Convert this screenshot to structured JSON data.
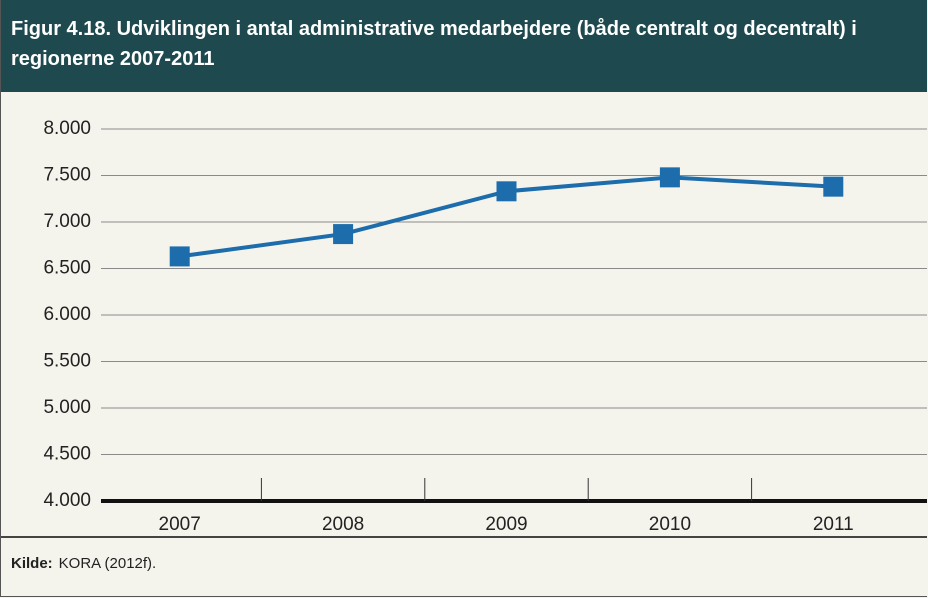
{
  "chart_data": {
    "type": "line",
    "title": "Figur 4.18. Udviklingen i antal administrative medarbejdere (både centralt og decentralt) i regionerne 2007-2011",
    "categories": [
      "2007",
      "2008",
      "2009",
      "2010",
      "2011"
    ],
    "series": [
      {
        "name": "Administrative medarbejdere",
        "color": "#1d6cab",
        "values": [
          6630,
          6870,
          7330,
          7480,
          7380
        ]
      }
    ],
    "ylim": [
      4000,
      8000
    ],
    "yticks": [
      {
        "value": 4000,
        "label": "4.000"
      },
      {
        "value": 4500,
        "label": "4.500"
      },
      {
        "value": 5000,
        "label": "5.000"
      },
      {
        "value": 5500,
        "label": "5.500"
      },
      {
        "value": 6000,
        "label": "6.000"
      },
      {
        "value": 6500,
        "label": "6.500"
      },
      {
        "value": 7000,
        "label": "7.000"
      },
      {
        "value": 7500,
        "label": "7.500"
      },
      {
        "value": 8000,
        "label": "8.000"
      }
    ],
    "grid": true
  },
  "source": {
    "label": "Kilde:",
    "text": "KORA (2012f)."
  }
}
